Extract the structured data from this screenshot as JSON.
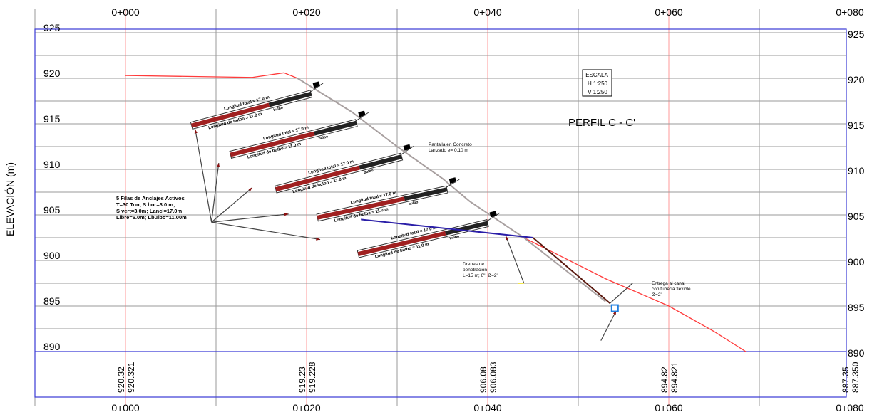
{
  "chart_data": {
    "type": "line",
    "title": "PERFIL C - C'",
    "ylabel": "ELEVACIÓN (m)",
    "xlim": [
      -10,
      80
    ],
    "ylim": [
      890,
      925
    ],
    "x_ticks": [
      "0+000",
      "0+020",
      "0+040",
      "0+060",
      "0+080"
    ],
    "y_ticks": [
      "925",
      "920",
      "915",
      "910",
      "905",
      "900",
      "895",
      "890"
    ],
    "grid": true,
    "scale_box": {
      "title": "ESCALA",
      "h": "H 1:250",
      "v": "V 1:250"
    },
    "series": [
      {
        "kind": "terrain-original",
        "color": "#ff3b3b",
        "x": [
          0,
          14,
          17.5,
          19,
          25,
          30,
          35,
          38,
          44,
          53,
          60,
          65,
          68.5
        ],
        "y": [
          920.3,
          920.1,
          920.6,
          920.0,
          916.3,
          912.5,
          909.0,
          906.5,
          902.5,
          898.0,
          895.0,
          892.2,
          890.0
        ]
      },
      {
        "kind": "terrain-design",
        "color": "#a8a0a0",
        "x": [
          19,
          25,
          30,
          35,
          38,
          44,
          53
        ],
        "y": [
          920.0,
          916.3,
          912.5,
          909.0,
          906.5,
          902.5,
          895.5
        ]
      }
    ],
    "bottom_table": [
      {
        "x": 0,
        "a": "920.32",
        "b": "920.321"
      },
      {
        "x": 20,
        "a": "919.23",
        "b": "919.228"
      },
      {
        "x": 40,
        "a": "906.08",
        "b": "906.083"
      },
      {
        "x": 60,
        "a": "894.82",
        "b": "894.821"
      },
      {
        "x": 80,
        "a": "887.35",
        "b": "887.350"
      }
    ],
    "anchors": [
      {
        "head": [
          20.5,
          918.3
        ],
        "tail": [
          7.3,
          914.8
        ],
        "bond_len": 4.8,
        "total_label": "Longitud total = 17.0 m",
        "free_label": "Longitud de bulbo = 11.0 m",
        "bond_label": "bulbo"
      },
      {
        "head": [
          25.5,
          915.1
        ],
        "tail": [
          11.6,
          911.6
        ],
        "bond_len": 4.8,
        "total_label": "Longitud total = 17.0 m",
        "free_label": "Longitud de bulbo = 11.0 m",
        "bond_label": "bulbo"
      },
      {
        "head": [
          30.5,
          911.4
        ],
        "tail": [
          16.6,
          907.8
        ],
        "bond_len": 4.8,
        "total_label": "Longitud total = 17.0 m",
        "free_label": "Longitud de bulbo = 11.0 m",
        "bond_label": "bulbo"
      },
      {
        "head": [
          35.5,
          907.8
        ],
        "tail": [
          21.2,
          904.7
        ],
        "bond_len": 4.8,
        "total_label": "Longitud total = 17.0 m",
        "free_label": "Longitud de bulbo = 11.0 m",
        "bond_label": "bulbo"
      },
      {
        "head": [
          40.0,
          904.1
        ],
        "tail": [
          25.7,
          900.7
        ],
        "bond_len": 4.8,
        "total_label": "Longitud total = 17.0 m",
        "free_label": "Longitud de bulbo = 11.0 m",
        "bond_label": "bulbo"
      }
    ],
    "drain_line": {
      "x": [
        26,
        45
      ],
      "y": [
        904.5,
        902.5
      ],
      "color": "#2a1ea8"
    },
    "callout_pointers": [
      {
        "from": [
          9.5,
          904.2
        ],
        "to": [
          7.7,
          914.4
        ]
      },
      {
        "from": [
          9.5,
          904.2
        ],
        "to": [
          10.3,
          910.7
        ]
      },
      {
        "from": [
          9.5,
          904.2
        ],
        "to": [
          14.0,
          908.0
        ]
      },
      {
        "from": [
          9.5,
          904.2
        ],
        "to": [
          18.0,
          905.1
        ]
      },
      {
        "from": [
          9.5,
          904.2
        ],
        "to": [
          21.5,
          902.3
        ]
      }
    ],
    "drain_pointer": {
      "from": [
        44,
        897.5
      ],
      "to": [
        42,
        902.7
      ]
    },
    "outlet": {
      "x": 54,
      "y": 894.8
    },
    "outlet_pointers": [
      {
        "from": [
          45.0,
          902.5
        ],
        "to": [
          53.5,
          895.3
        ]
      },
      {
        "from": [
          53.5,
          895.3
        ],
        "to": [
          56.0,
          897.5
        ]
      },
      {
        "from": [
          52.5,
          891.2
        ],
        "to": [
          54.2,
          894.5
        ]
      }
    ],
    "annotations": [
      {
        "id": "anchors-spec",
        "lines": [
          "5 Filas de Anclajes Activos",
          "T=30 Ton; S hor=3.0 m;",
          "S vert=3.0m; Lancl=17.0m",
          "Libre=6.0m; Lbulbo=11.00m"
        ]
      },
      {
        "id": "shotcrete",
        "lines": [
          "Pantalla en Concreto",
          "Lanzado e= 0.10 m"
        ]
      },
      {
        "id": "drains",
        "lines": [
          "Drenes de",
          "penetración",
          "L=15 m; 6\"; Ø=2\""
        ]
      },
      {
        "id": "outlet",
        "lines": [
          "Entrega al canal",
          "con tubería flexible",
          "Ø=2\""
        ]
      }
    ]
  }
}
